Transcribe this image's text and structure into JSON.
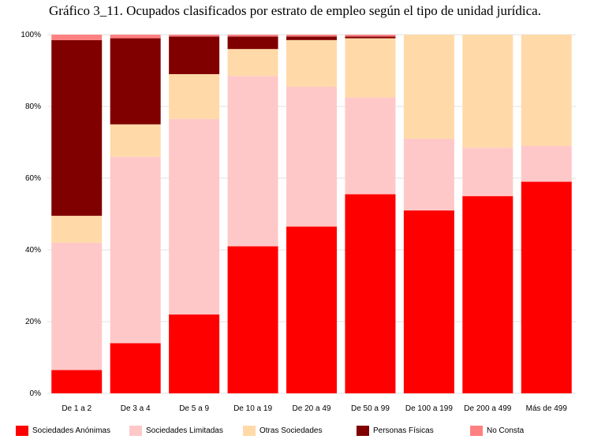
{
  "chart_data": {
    "type": "bar",
    "stacked": true,
    "normalized": true,
    "title": "Gráfico 3_11. Ocupados clasificados por estrato de empleo según el tipo de unidad jurídica.",
    "categories": [
      "De 1 a 2",
      "De 3 a 4",
      "De 5 a 9",
      "De 10 a 19",
      "De 20 a 49",
      "De 50 a 99",
      "De 100 a 199",
      "De 200 a 499",
      "Más de 499"
    ],
    "y_ticks": [
      "0%",
      "20%",
      "40%",
      "60%",
      "80%",
      "100%"
    ],
    "ylim": [
      0,
      100
    ],
    "grid": true,
    "legend_position": "bottom",
    "series": [
      {
        "name": "Sociedades Anónimas",
        "color": "#ff0000",
        "values": [
          6.5,
          14,
          22,
          41,
          46.5,
          55.5,
          51,
          55,
          59
        ]
      },
      {
        "name": "Sociedades Limitadas",
        "color": "#ffc8c8",
        "values": [
          35.5,
          52,
          54.5,
          47.5,
          39,
          27,
          20,
          13.5,
          10
        ]
      },
      {
        "name": "Otras Sociedades",
        "color": "#ffdaa8",
        "values": [
          7.5,
          9,
          12.5,
          7.5,
          13,
          16.5,
          29,
          31.5,
          31
        ]
      },
      {
        "name": "Personas Físicas",
        "color": "#800000",
        "values": [
          49,
          24,
          10.5,
          3.5,
          1,
          0.5,
          0,
          0,
          0
        ]
      },
      {
        "name": "No Consta",
        "color": "#ff8080",
        "values": [
          1.5,
          1,
          0.5,
          0.5,
          0.5,
          0.5,
          0,
          0,
          0
        ]
      }
    ]
  }
}
